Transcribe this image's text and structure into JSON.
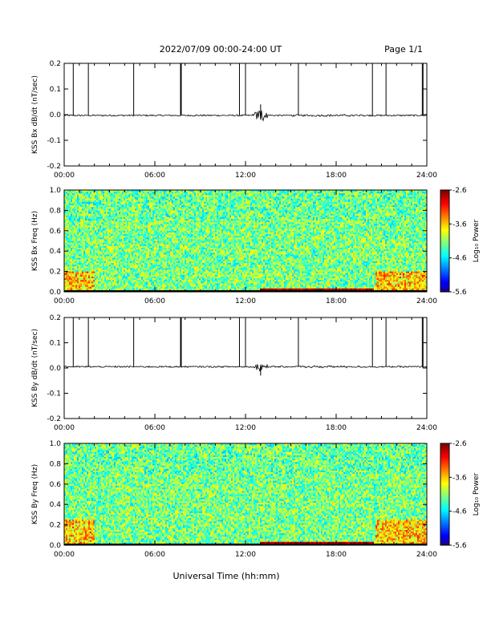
{
  "header": {
    "title": "2022/07/09  00:00-24:00 UT",
    "page": "Page 1/1"
  },
  "xaxis": {
    "label": "Universal Time (hh:mm)",
    "range_hours": [
      0,
      24
    ],
    "ticks": [
      "00:00",
      "06:00",
      "12:00",
      "18:00",
      "24:00"
    ]
  },
  "colorbar": {
    "label": "Log₁₀ Power",
    "ticks": [
      "-2.6",
      "-3.6",
      "-4.6",
      "-5.6"
    ],
    "range": [
      -5.6,
      -2.6
    ]
  },
  "chart_data": [
    {
      "type": "line",
      "ylabel": "KSS Bx dB/dt (nT/sec)",
      "ylim": [
        -0.2,
        0.2
      ],
      "yticks": [
        "0.2",
        "0.1",
        "0.0",
        "-0.1",
        "-0.2"
      ],
      "baseline": -0.003,
      "spikes_hours": [
        0.6,
        1.6,
        4.6,
        7.7,
        7.75,
        11.6,
        12.0,
        15.5,
        20.4,
        21.3,
        23.7,
        23.75
      ],
      "spike_top": 0.2,
      "disturbance": {
        "center_hours": 13.0,
        "max": 0.04,
        "min": -0.02
      }
    },
    {
      "type": "heatmap",
      "ylabel": "KSS Bx Freq (Hz)",
      "ylim": [
        0.0,
        1.0
      ],
      "yticks": [
        "1.0",
        "0.8",
        "0.6",
        "0.4",
        "0.2",
        "0.0"
      ],
      "zlim": [
        -5.6,
        -2.6
      ],
      "notes": "broadband noise near -4.0; enhanced power below 0.2 Hz before 02:00 and after 20:30; strong power below 0.05 Hz from 13:00 to 20:30"
    },
    {
      "type": "line",
      "ylabel": "KSS By dB/dt (nT/sec)",
      "ylim": [
        -0.2,
        0.2
      ],
      "yticks": [
        "0.2",
        "0.1",
        "0.0",
        "-0.1",
        "-0.2"
      ],
      "baseline": 0.005,
      "spikes_hours": [
        0.6,
        1.6,
        4.6,
        7.7,
        7.75,
        11.6,
        12.0,
        15.5,
        20.4,
        21.3,
        23.7,
        23.75
      ],
      "spike_top": 0.2,
      "disturbance": {
        "center_hours": 13.0,
        "max": 0.01,
        "min": -0.03
      }
    },
    {
      "type": "heatmap",
      "ylabel": "KSS By Freq (Hz)",
      "ylim": [
        0.0,
        1.0
      ],
      "yticks": [
        "1.0",
        "0.8",
        "0.6",
        "0.4",
        "0.2",
        "0.0"
      ],
      "zlim": [
        -5.6,
        -2.6
      ],
      "notes": "broadband noise near -4.0; enhanced power below 0.25 Hz before 02:00 and after 20:30; strong power below 0.05 Hz from 13:00 to 20:30"
    }
  ]
}
